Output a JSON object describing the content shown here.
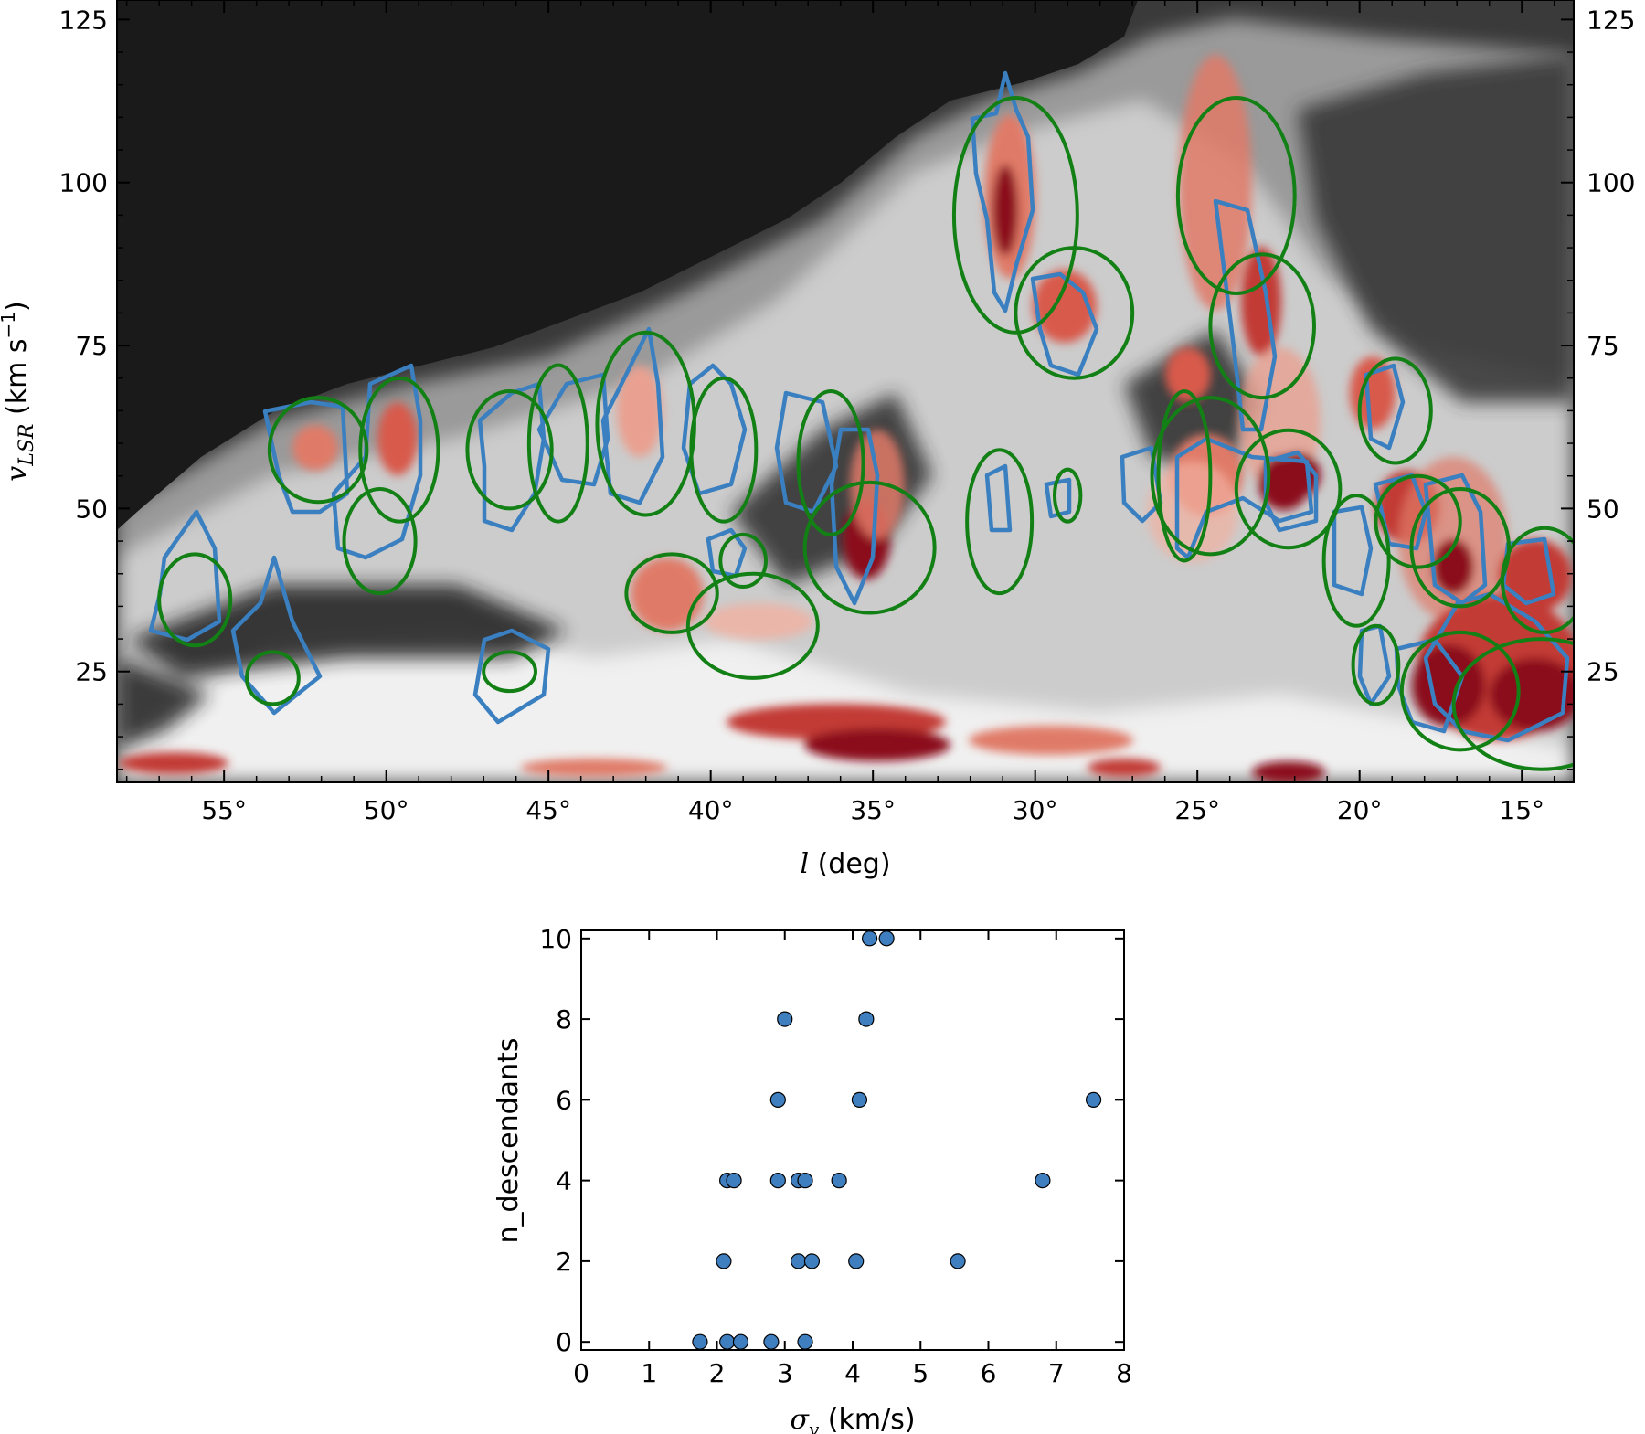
{
  "chart_data": [
    {
      "type": "heatmap",
      "title": "",
      "xlabel_symbol": "l",
      "xlabel_unit": "(deg)",
      "ylabel_symbol": "v",
      "ylabel_subscript": "LSR",
      "ylabel_unit": "(km s",
      "ylabel_exponent": "−1",
      "ylabel_close": ")",
      "xlim": [
        58.3,
        13.4
      ],
      "ylim": [
        8,
        128
      ],
      "x_ticks": [
        55,
        50,
        45,
        40,
        35,
        30,
        25,
        20,
        15
      ],
      "x_tick_labels": [
        "55°",
        "50°",
        "45°",
        "40°",
        "35°",
        "30°",
        "25°",
        "20°",
        "15°"
      ],
      "y_ticks": [
        25,
        50,
        75,
        100,
        125
      ],
      "y_tick_labels": [
        "25",
        "50",
        "75",
        "100",
        "125"
      ],
      "colors": {
        "background_empty": "#1a1a1a",
        "contour": "#3a7fc0",
        "ellipse": "#138015",
        "emission_high": "#8b0a1a",
        "emission_mid": "#e07a68"
      },
      "ellipses": [
        {
          "l": 55.9,
          "v": 36,
          "dl": 1.1,
          "dv": 7,
          "angle": 0
        },
        {
          "l": 53.5,
          "v": 24,
          "dl": 0.8,
          "dv": 4,
          "angle": 0
        },
        {
          "l": 52.1,
          "v": 59,
          "dl": 1.5,
          "dv": 8,
          "angle": 0
        },
        {
          "l": 49.6,
          "v": 59,
          "dl": 1.2,
          "dv": 11,
          "angle": 0
        },
        {
          "l": 50.2,
          "v": 45,
          "dl": 1.1,
          "dv": 8,
          "angle": 0
        },
        {
          "l": 46.2,
          "v": 59,
          "dl": 1.3,
          "dv": 9,
          "angle": 0
        },
        {
          "l": 44.7,
          "v": 60,
          "dl": 0.9,
          "dv": 12,
          "angle": 0
        },
        {
          "l": 42.0,
          "v": 63,
          "dl": 1.5,
          "dv": 14,
          "angle": 0
        },
        {
          "l": 39.6,
          "v": 59,
          "dl": 1.0,
          "dv": 11,
          "angle": 0
        },
        {
          "l": 41.2,
          "v": 37,
          "dl": 1.4,
          "dv": 6,
          "angle": 0
        },
        {
          "l": 39.0,
          "v": 42,
          "dl": 0.7,
          "dv": 4,
          "angle": 0
        },
        {
          "l": 38.7,
          "v": 32,
          "dl": 2.0,
          "dv": 8,
          "angle": 0
        },
        {
          "l": 46.2,
          "v": 25,
          "dl": 0.8,
          "dv": 3,
          "angle": 0
        },
        {
          "l": 36.3,
          "v": 57,
          "dl": 1.0,
          "dv": 11,
          "angle": 0
        },
        {
          "l": 35.1,
          "v": 44,
          "dl": 2.0,
          "dv": 10,
          "angle": 0
        },
        {
          "l": 31.1,
          "v": 48,
          "dl": 1.0,
          "dv": 11,
          "angle": 0
        },
        {
          "l": 30.6,
          "v": 95,
          "dl": 1.9,
          "dv": 18,
          "angle": 0
        },
        {
          "l": 28.8,
          "v": 80,
          "dl": 1.8,
          "dv": 10,
          "angle": 0
        },
        {
          "l": 29.0,
          "v": 52,
          "dl": 0.4,
          "dv": 4,
          "angle": 0
        },
        {
          "l": 23.8,
          "v": 98,
          "dl": 1.8,
          "dv": 15,
          "angle": 0
        },
        {
          "l": 23.0,
          "v": 78,
          "dl": 1.6,
          "dv": 11,
          "angle": 0
        },
        {
          "l": 25.4,
          "v": 55,
          "dl": 0.8,
          "dv": 13,
          "angle": 0
        },
        {
          "l": 24.6,
          "v": 55,
          "dl": 1.8,
          "dv": 12,
          "angle": 0
        },
        {
          "l": 22.2,
          "v": 53,
          "dl": 1.6,
          "dv": 9,
          "angle": 0
        },
        {
          "l": 20.1,
          "v": 42,
          "dl": 1.0,
          "dv": 10,
          "angle": 0
        },
        {
          "l": 18.9,
          "v": 65,
          "dl": 1.1,
          "dv": 8,
          "angle": 0
        },
        {
          "l": 18.2,
          "v": 48,
          "dl": 1.3,
          "dv": 7,
          "angle": 0
        },
        {
          "l": 16.9,
          "v": 44,
          "dl": 1.5,
          "dv": 9,
          "angle": 0
        },
        {
          "l": 19.5,
          "v": 26,
          "dl": 0.7,
          "dv": 6,
          "angle": 0
        },
        {
          "l": 14.3,
          "v": 39,
          "dl": 1.3,
          "dv": 8,
          "angle": 0
        },
        {
          "l": 16.9,
          "v": 22,
          "dl": 1.8,
          "dv": 9,
          "angle": 0
        },
        {
          "l": 14.4,
          "v": 20,
          "dl": 2.7,
          "dv": 10,
          "angle": 0
        }
      ]
    },
    {
      "type": "scatter",
      "title": "",
      "xlabel_symbol": "σ",
      "xlabel_subscript": "v",
      "xlabel_unit": "(km/s)",
      "ylabel": "n_descendants",
      "xlim": [
        0,
        8
      ],
      "ylim": [
        -0.2,
        10.2
      ],
      "x_ticks": [
        0,
        1,
        2,
        3,
        4,
        5,
        6,
        7,
        8
      ],
      "x_tick_labels": [
        "0",
        "1",
        "2",
        "3",
        "4",
        "5",
        "6",
        "7",
        "8"
      ],
      "y_ticks": [
        0,
        2,
        4,
        6,
        8,
        10
      ],
      "y_tick_labels": [
        "0",
        "2",
        "4",
        "6",
        "8",
        "10"
      ],
      "marker_color": "#3f7fc0",
      "points": [
        {
          "x": 1.75,
          "y": 0
        },
        {
          "x": 2.15,
          "y": 0
        },
        {
          "x": 2.35,
          "y": 0
        },
        {
          "x": 2.8,
          "y": 0
        },
        {
          "x": 3.3,
          "y": 0
        },
        {
          "x": 2.1,
          "y": 2
        },
        {
          "x": 3.2,
          "y": 2
        },
        {
          "x": 3.4,
          "y": 2
        },
        {
          "x": 4.05,
          "y": 2
        },
        {
          "x": 5.55,
          "y": 2
        },
        {
          "x": 2.15,
          "y": 4
        },
        {
          "x": 2.25,
          "y": 4
        },
        {
          "x": 2.9,
          "y": 4
        },
        {
          "x": 3.2,
          "y": 4
        },
        {
          "x": 3.3,
          "y": 4
        },
        {
          "x": 3.8,
          "y": 4
        },
        {
          "x": 6.8,
          "y": 4
        },
        {
          "x": 2.9,
          "y": 6
        },
        {
          "x": 4.1,
          "y": 6
        },
        {
          "x": 7.55,
          "y": 6
        },
        {
          "x": 3.0,
          "y": 8
        },
        {
          "x": 4.2,
          "y": 8
        },
        {
          "x": 4.25,
          "y": 10
        },
        {
          "x": 4.5,
          "y": 10
        }
      ]
    }
  ]
}
